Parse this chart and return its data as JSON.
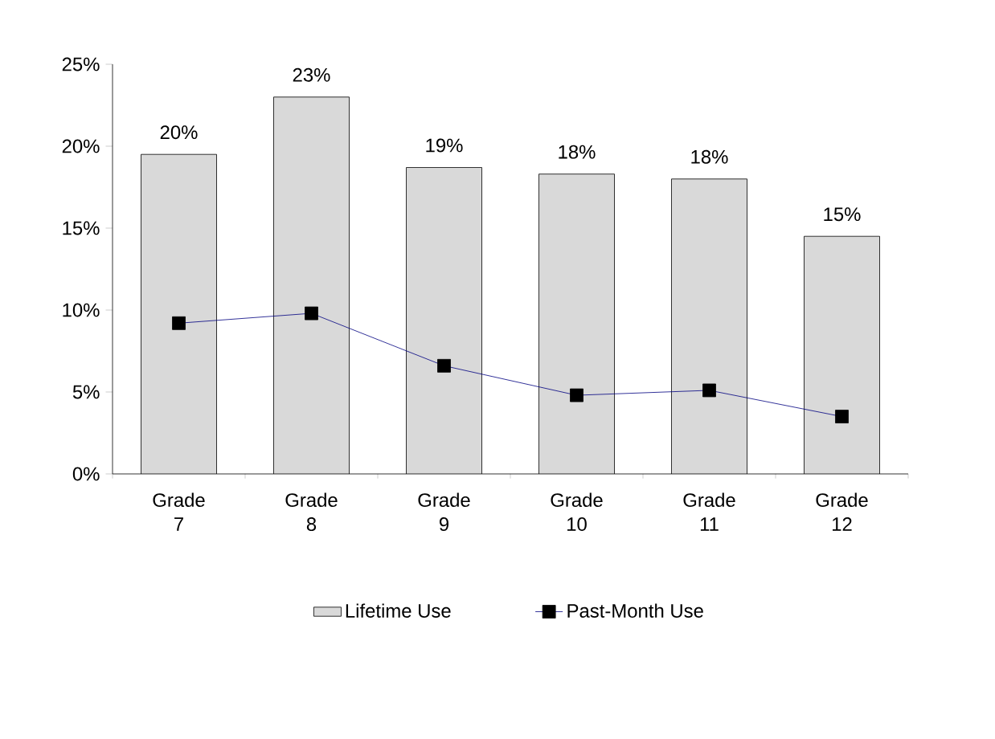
{
  "chart_data": {
    "type": "bar",
    "categories": [
      "Grade 7",
      "Grade 8",
      "Grade 9",
      "Grade 10",
      "Grade 11",
      "Grade 12"
    ],
    "series": [
      {
        "name": "Lifetime Use",
        "color": "#d9d9d9",
        "values": [
          19.5,
          23,
          18.7,
          18.3,
          18,
          14.5
        ],
        "value_labels": [
          "20%",
          "23%",
          "19%",
          "18%",
          "18%",
          "15%"
        ]
      },
      {
        "name": "Past-Month Use",
        "type": "line",
        "color": "#000080",
        "marker": "square",
        "values": [
          9.2,
          9.8,
          6.6,
          4.8,
          5.1,
          3.5
        ]
      }
    ],
    "ylim": [
      0,
      25
    ],
    "yticks": [
      {
        "value": 0,
        "label": "0%"
      },
      {
        "value": 5,
        "label": "5%"
      },
      {
        "value": 10,
        "label": "10%"
      },
      {
        "value": 15,
        "label": "15%"
      },
      {
        "value": 20,
        "label": "20%"
      },
      {
        "value": 25,
        "label": "25%"
      }
    ],
    "grid": false,
    "legend": "bottom"
  }
}
